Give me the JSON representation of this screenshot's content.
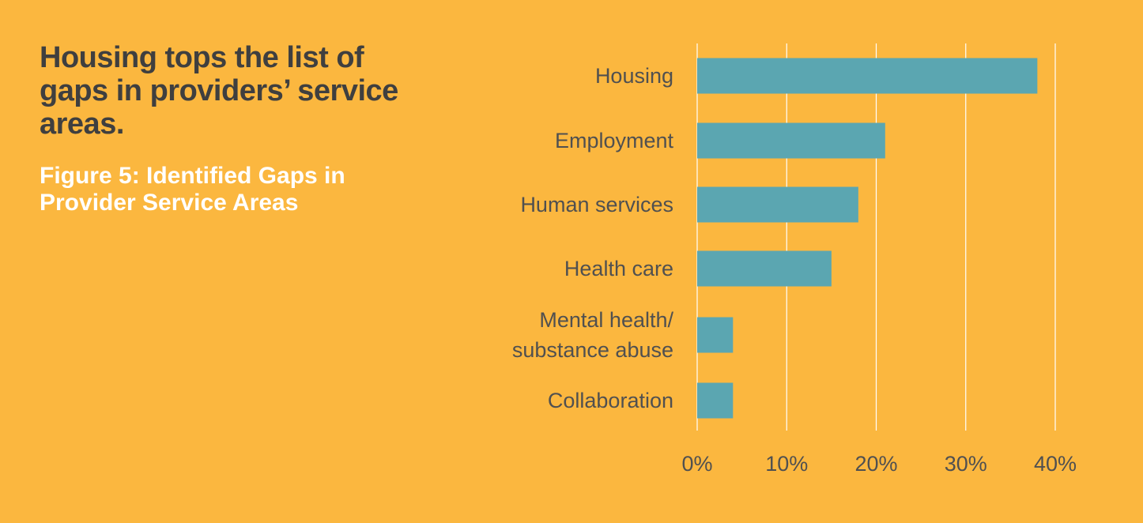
{
  "headline": "Housing tops the list of gaps in providers’ service areas.",
  "chart_data": {
    "type": "bar",
    "orientation": "horizontal",
    "title": "Figure 5: Identified Gaps in Provider Service Areas",
    "categories": [
      [
        "Housing"
      ],
      [
        "Employment"
      ],
      [
        "Human services"
      ],
      [
        "Health care"
      ],
      [
        "Mental health/",
        "substance abuse"
      ],
      [
        "Collaboration"
      ]
    ],
    "values": [
      38,
      21,
      18,
      15,
      4,
      4
    ],
    "xlim": [
      0,
      40
    ],
    "xticks": [
      "0%",
      "10%",
      "20%",
      "30%",
      "40%"
    ],
    "grid": true,
    "bar_color": "#5BA6B1",
    "grid_color": "#FFFFFF",
    "background_color": "#FBB73F"
  }
}
